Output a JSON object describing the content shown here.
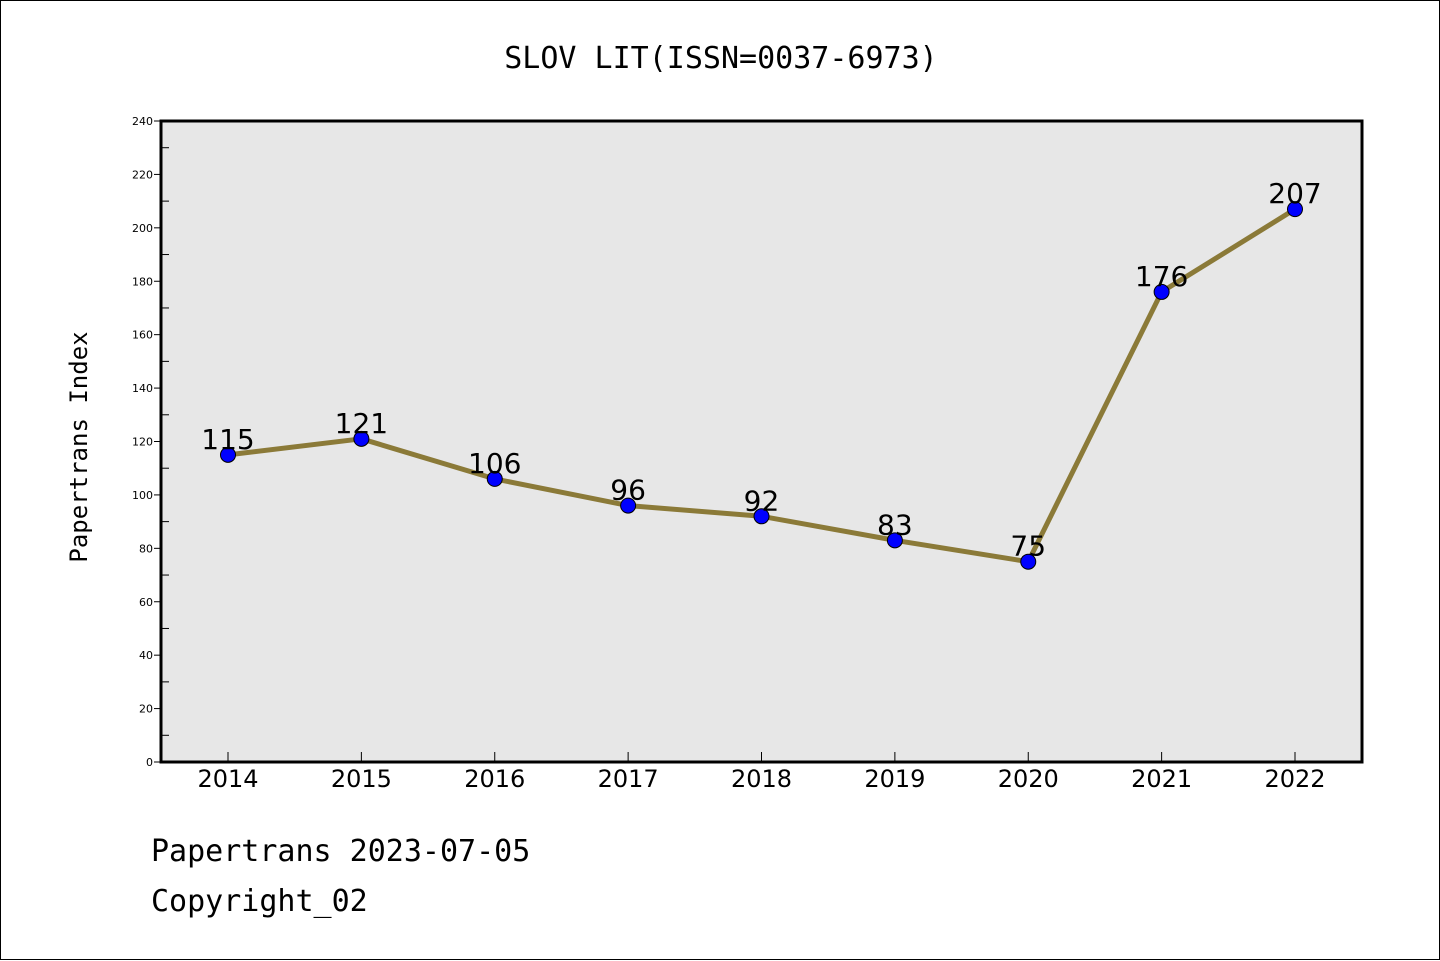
{
  "chart_data": {
    "type": "line",
    "title": "SLOV LIT(ISSN=0037-6973)",
    "xlabel": "",
    "ylabel": "Papertrans Index",
    "categories": [
      "2014",
      "2015",
      "2016",
      "2017",
      "2018",
      "2019",
      "2020",
      "2021",
      "2022"
    ],
    "values": [
      115,
      121,
      106,
      96,
      92,
      83,
      75,
      176,
      207
    ],
    "data_labels": [
      "115",
      "121",
      "106",
      "96",
      "92",
      "83",
      "75",
      "176",
      "207"
    ],
    "ylim": [
      0,
      240
    ],
    "y_ticks": [
      0,
      20,
      40,
      60,
      80,
      100,
      120,
      140,
      160,
      180,
      200,
      220,
      240
    ],
    "y_tick_labels": [
      "0",
      "20",
      "40",
      "60",
      "80",
      "100",
      "120",
      "140",
      "160",
      "180",
      "200",
      "220",
      "240"
    ],
    "grid": false,
    "colors": {
      "line": "#8b7a38",
      "marker": "#0000ff",
      "plot_background": "#e7e7e7"
    }
  },
  "footer": {
    "line1": "Papertrans 2023-07-05",
    "line2": "Copyright_02"
  }
}
